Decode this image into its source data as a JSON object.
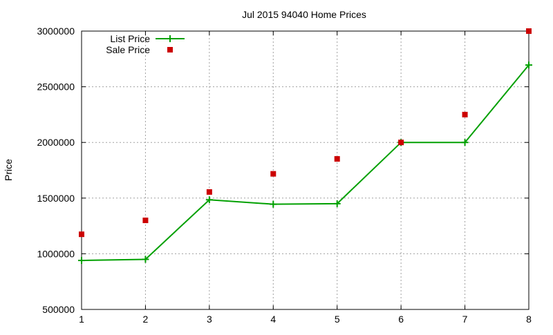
{
  "chart_data": {
    "type": "line",
    "title": "Jul 2015 94040 Home Prices",
    "xlabel": "",
    "ylabel": "Price",
    "x": [
      1,
      2,
      3,
      4,
      5,
      6,
      7,
      8
    ],
    "xticks": [
      "1",
      "2",
      "3",
      "4",
      "5",
      "6",
      "7",
      "8"
    ],
    "yticks": [
      "500000",
      "1000000",
      "1500000",
      "2000000",
      "2500000",
      "3000000"
    ],
    "xlim": [
      1,
      8
    ],
    "ylim": [
      500000,
      3000000
    ],
    "grid": true,
    "legend_position": "top-left",
    "series": [
      {
        "name": "List Price",
        "style": "linespoints",
        "marker": "plus",
        "color": "#00a000",
        "values": [
          940000,
          950000,
          1485000,
          1445000,
          1450000,
          2000000,
          2000000,
          2695000
        ]
      },
      {
        "name": "Sale Price",
        "style": "points",
        "marker": "square",
        "color": "#cc0000",
        "values": [
          1175000,
          1300000,
          1555000,
          1718000,
          1852000,
          2000000,
          2250000,
          3000000
        ]
      }
    ]
  }
}
